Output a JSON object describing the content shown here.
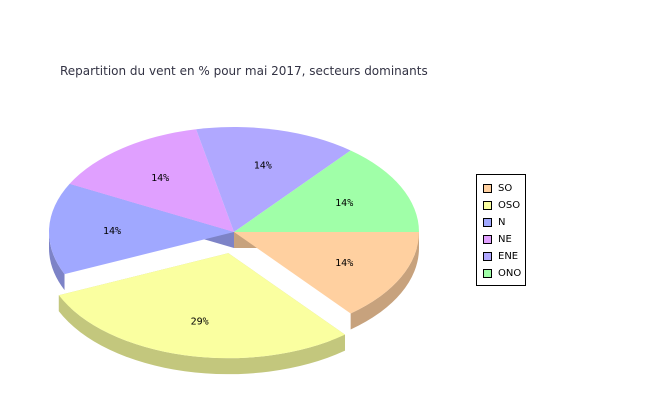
{
  "chart_data": {
    "type": "pie",
    "title": "Repartition du vent en % pour mai 2017, secteurs dominants",
    "categories": [
      "SO",
      "OSO",
      "N",
      "NE",
      "ENE",
      "ONO"
    ],
    "values": [
      14,
      29,
      14,
      14,
      14,
      14
    ],
    "labels": [
      "14%",
      "29%",
      "14%",
      "14%",
      "14%",
      "14%"
    ],
    "colors": [
      "#ffd0a0",
      "#faffa0",
      "#a0a8ff",
      "#e0a0ff",
      "#b0a8ff",
      "#a0ffa8"
    ],
    "exploded": [
      "OSO"
    ],
    "style": "3d",
    "legend_position": "right"
  }
}
